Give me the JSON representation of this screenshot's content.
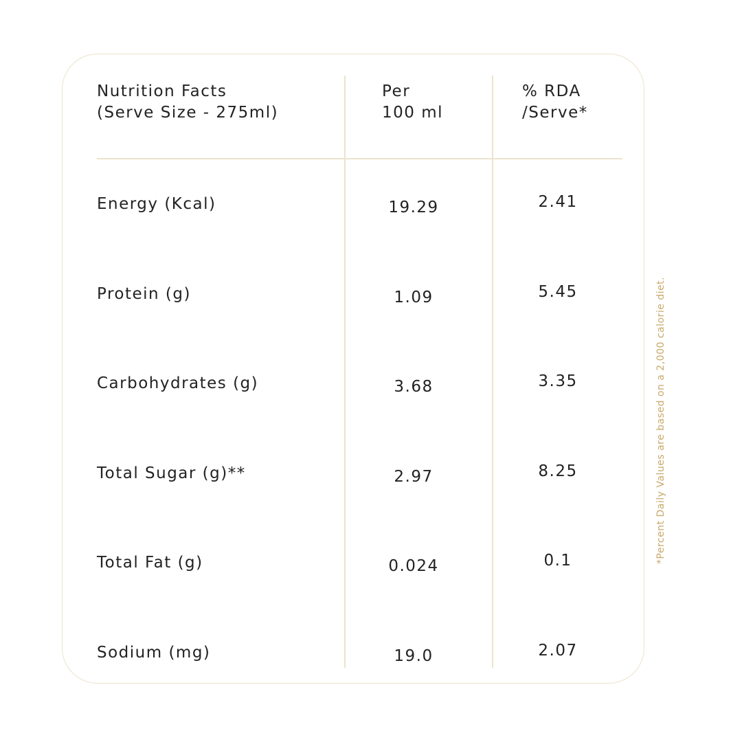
{
  "table": {
    "header": [
      [
        "Nutrition Facts",
        "(Serve Size - 275ml)"
      ],
      [
        "Per",
        "100 ml"
      ],
      [
        "% RDA",
        "/Serve*"
      ]
    ],
    "rows": [
      [
        "Energy (Kcal)",
        "19.29",
        "2.41"
      ],
      [
        "Protein (g)",
        "1.09",
        "5.45"
      ],
      [
        "Carbohydrates (g)",
        "3.68",
        "3.35"
      ],
      [
        "Total Sugar (g)**",
        "2.97",
        "8.25"
      ],
      [
        "Total Fat (g)",
        "0.024",
        "0.1"
      ],
      [
        "Sodium (mg)",
        "19.0",
        "2.07"
      ]
    ]
  },
  "footnote": "*Percent Daily Values are based on a 2,000 calorie diet."
}
